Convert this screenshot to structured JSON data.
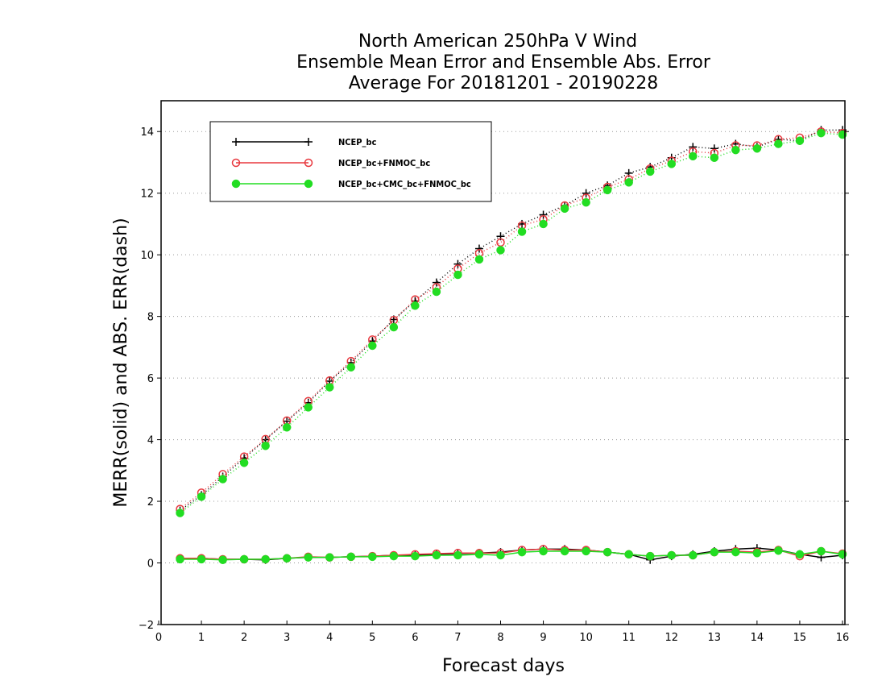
{
  "chart_data": {
    "type": "line",
    "title": [
      "North American 250hPa V Wind",
      "Ensemble Mean Error and Ensemble Abs. Error",
      "Average For 20181201 - 20190228"
    ],
    "xlabel": "Forecast days",
    "ylabel": "MERR(solid) and ABS. ERR(dash)",
    "xlim": [
      0,
      16
    ],
    "ylim": [
      -2,
      15
    ],
    "xticks": [
      0,
      1,
      2,
      3,
      4,
      5,
      6,
      7,
      8,
      9,
      10,
      11,
      12,
      13,
      14,
      15,
      16
    ],
    "yticks": [
      -2,
      0,
      2,
      4,
      6,
      8,
      10,
      12,
      14
    ],
    "grid": "horizontal dotted",
    "legend_position": "top-left",
    "x": [
      0.5,
      1,
      1.5,
      2,
      2.5,
      3,
      3.5,
      4,
      4.5,
      5,
      5.5,
      6,
      6.5,
      7,
      7.5,
      8,
      8.5,
      9,
      9.5,
      10,
      10.5,
      11,
      11.5,
      12,
      12.5,
      13,
      13.5,
      14,
      14.5,
      15,
      15.5,
      16
    ],
    "series": [
      {
        "name": "NCEP_bc",
        "color": "#000000",
        "marker": "plus",
        "merr": [
          0.15,
          0.15,
          0.12,
          0.12,
          0.1,
          0.15,
          0.18,
          0.18,
          0.2,
          0.22,
          0.25,
          0.25,
          0.28,
          0.3,
          0.32,
          0.35,
          0.42,
          0.45,
          0.45,
          0.42,
          0.35,
          0.28,
          0.1,
          0.22,
          0.28,
          0.38,
          0.45,
          0.48,
          0.42,
          0.28,
          0.18,
          0.25
        ],
        "abs_err": [
          1.7,
          2.2,
          2.8,
          3.4,
          4.0,
          4.6,
          5.2,
          5.9,
          6.5,
          7.2,
          7.9,
          8.5,
          9.1,
          9.7,
          10.2,
          10.6,
          11.0,
          11.3,
          11.6,
          12.0,
          12.25,
          12.65,
          12.85,
          13.15,
          13.5,
          13.45,
          13.6,
          13.5,
          13.75,
          13.7,
          14.05,
          14.05
        ]
      },
      {
        "name": "NCEP_bc+FNMOC_bc",
        "color": "#e8393f",
        "marker": "open-circle",
        "merr": [
          0.15,
          0.15,
          0.12,
          0.12,
          0.12,
          0.15,
          0.2,
          0.18,
          0.2,
          0.22,
          0.25,
          0.28,
          0.3,
          0.32,
          0.32,
          0.32,
          0.42,
          0.45,
          0.42,
          0.42,
          0.35,
          0.28,
          0.22,
          0.25,
          0.25,
          0.35,
          0.38,
          0.35,
          0.42,
          0.22,
          0.38,
          0.3
        ],
        "abs_err": [
          1.75,
          2.28,
          2.88,
          3.45,
          4.02,
          4.62,
          5.25,
          5.92,
          6.55,
          7.25,
          7.88,
          8.55,
          8.95,
          9.55,
          10.05,
          10.4,
          10.95,
          11.15,
          11.6,
          11.85,
          12.2,
          12.45,
          12.8,
          13.05,
          13.35,
          13.3,
          13.55,
          13.55,
          13.75,
          13.8,
          14.0,
          13.95
        ]
      },
      {
        "name": "NCEP_bc+CMC_bc+FNMOC_bc",
        "color": "#22dd22",
        "marker": "filled-circle",
        "merr": [
          0.12,
          0.12,
          0.1,
          0.12,
          0.12,
          0.15,
          0.18,
          0.18,
          0.2,
          0.2,
          0.22,
          0.22,
          0.25,
          0.25,
          0.28,
          0.25,
          0.35,
          0.38,
          0.38,
          0.38,
          0.35,
          0.28,
          0.22,
          0.25,
          0.25,
          0.35,
          0.35,
          0.32,
          0.4,
          0.28,
          0.38,
          0.28
        ],
        "abs_err": [
          1.62,
          2.15,
          2.72,
          3.25,
          3.8,
          4.4,
          5.05,
          5.7,
          6.35,
          7.05,
          7.65,
          8.35,
          8.8,
          9.35,
          9.85,
          10.15,
          10.75,
          11.0,
          11.5,
          11.7,
          12.1,
          12.35,
          12.7,
          12.95,
          13.2,
          13.15,
          13.4,
          13.45,
          13.6,
          13.7,
          13.95,
          13.9
        ]
      }
    ]
  }
}
